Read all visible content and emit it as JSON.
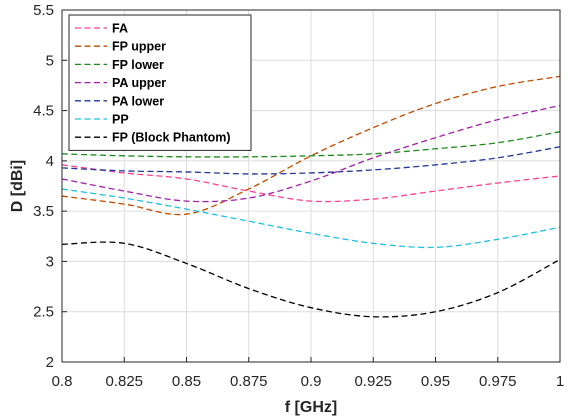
{
  "chart_data": {
    "type": "line",
    "title": "",
    "xlabel": "f [GHz]",
    "ylabel": "D [dBi]",
    "xlim": [
      0.8,
      1.0
    ],
    "ylim": [
      2.0,
      5.5
    ],
    "grid": true,
    "legend_position": "top-left",
    "x_ticks": [
      "0.8",
      "0.825",
      "0.85",
      "0.875",
      "0.9",
      "0.925",
      "0.95",
      "0.975",
      "1"
    ],
    "y_ticks": [
      "2",
      "2.5",
      "3",
      "3.5",
      "4",
      "4.5",
      "5",
      "5.5"
    ],
    "x": [
      0.8,
      0.825,
      0.85,
      0.875,
      0.9,
      0.925,
      0.95,
      0.975,
      1.0
    ],
    "line_style": "dashed",
    "series": [
      {
        "name": "FA",
        "color": "#ff3f8f",
        "values": [
          3.96,
          3.88,
          3.82,
          3.7,
          3.6,
          3.62,
          3.7,
          3.78,
          3.85
        ]
      },
      {
        "name": "FP upper",
        "color": "#c04a00",
        "values": [
          3.65,
          3.57,
          3.47,
          3.72,
          4.05,
          4.33,
          4.57,
          4.74,
          4.84
        ]
      },
      {
        "name": "FP lower",
        "color": "#1a8c1a",
        "values": [
          4.07,
          4.05,
          4.04,
          4.04,
          4.05,
          4.07,
          4.12,
          4.18,
          4.29
        ]
      },
      {
        "name": "PA upper",
        "color": "#a020a8",
        "values": [
          3.82,
          3.7,
          3.6,
          3.63,
          3.8,
          4.03,
          4.23,
          4.41,
          4.55
        ]
      },
      {
        "name": "PA lower",
        "color": "#23359a",
        "values": [
          3.93,
          3.9,
          3.89,
          3.87,
          3.88,
          3.91,
          3.96,
          4.03,
          4.14
        ]
      },
      {
        "name": "PP",
        "color": "#1ec0e0",
        "values": [
          3.72,
          3.63,
          3.52,
          3.4,
          3.28,
          3.18,
          3.14,
          3.22,
          3.34
        ]
      },
      {
        "name": "FP (Block Phantom)",
        "color": "#000000",
        "values": [
          3.17,
          3.18,
          2.98,
          2.73,
          2.54,
          2.45,
          2.5,
          2.69,
          3.02
        ]
      }
    ]
  }
}
